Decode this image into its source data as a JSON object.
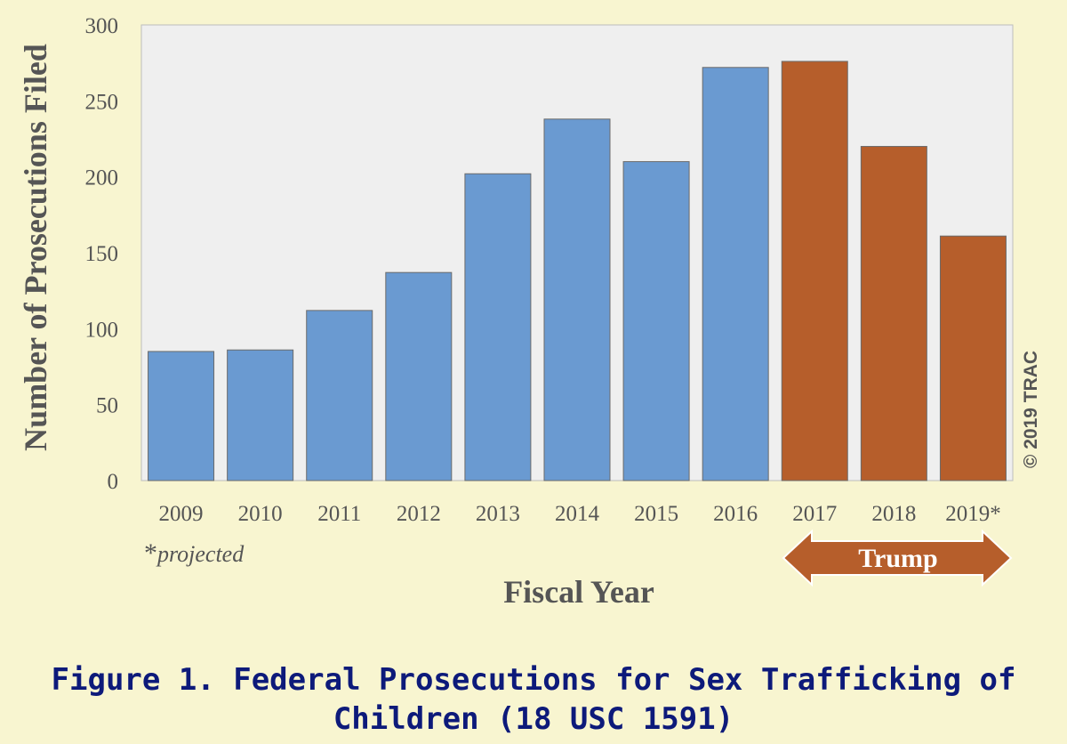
{
  "chart_data": {
    "type": "bar",
    "title": "Figure 1. Federal Prosecutions for Sex Trafficking of Children (18 USC 1591)",
    "xlabel": "Fiscal Year",
    "ylabel": "Number of Prosecutions Filed",
    "ylim": [
      0,
      300
    ],
    "yticks": [
      "0",
      "50",
      "100",
      "150",
      "200",
      "250",
      "300"
    ],
    "categories": [
      "2009",
      "2010",
      "2011",
      "2012",
      "2013",
      "2014",
      "2015",
      "2016",
      "2017",
      "2018",
      "2019*"
    ],
    "values": [
      85,
      86,
      112,
      137,
      202,
      238,
      210,
      272,
      276,
      220,
      161
    ],
    "bar_colors": [
      "#6a9ad1",
      "#6a9ad1",
      "#6a9ad1",
      "#6a9ad1",
      "#6a9ad1",
      "#6a9ad1",
      "#6a9ad1",
      "#6a9ad1",
      "#b65e2b",
      "#b65e2b",
      "#b65e2b"
    ],
    "grid": false,
    "plot_background": "#efefef",
    "annotations": {
      "projected_note_star": "*",
      "projected_note": "projected",
      "arrow_label": "Trump",
      "copyright": "© 2019 TRAC"
    }
  }
}
